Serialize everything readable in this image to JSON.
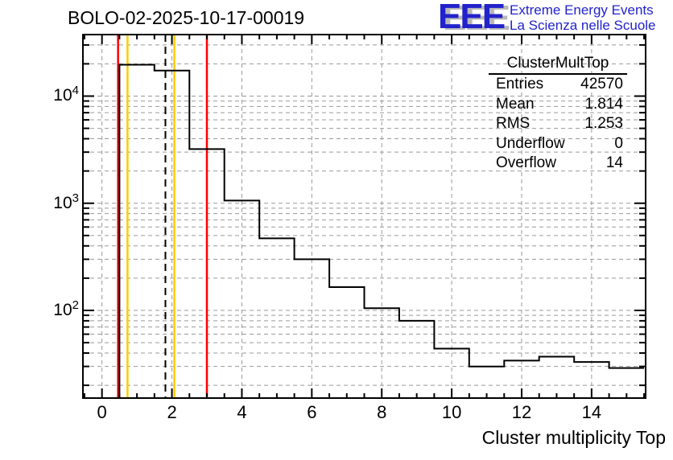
{
  "header": {
    "title": "BOLO-02-2025-10-17-00019",
    "logo": {
      "acronym": "EEE",
      "line1": "Extreme Energy Events",
      "line2": "La Scienza nelle Scuole",
      "blue": "#2222cc",
      "shadow": "#b9b9b9"
    }
  },
  "stats": {
    "title": "ClusterMultTop",
    "rows": [
      {
        "label": "Entries",
        "value": "42570"
      },
      {
        "label": "Mean",
        "value": "1.814"
      },
      {
        "label": "RMS",
        "value": "1.253"
      },
      {
        "label": "Underflow",
        "value": "0"
      },
      {
        "label": "Overflow",
        "value": "14"
      }
    ]
  },
  "chart_data": {
    "type": "bar",
    "style": "step-outline-histogram",
    "title": "BOLO-02-2025-10-17-00019",
    "xlabel": "Cluster multiplicity Top",
    "ylabel": "",
    "y_scale": "log",
    "grid": true,
    "x_range": [
      -0.545,
      15.545
    ],
    "y_range": [
      15.2,
      37500
    ],
    "bin_width": 1,
    "bin_centers": [
      0,
      1,
      2,
      3,
      4,
      5,
      6,
      7,
      8,
      9,
      10,
      11,
      12,
      13,
      14,
      15
    ],
    "counts": [
      0,
      19600,
      17300,
      3200,
      1060,
      470,
      300,
      165,
      105,
      80,
      44,
      30,
      34,
      37,
      33,
      29
    ],
    "x_major_ticks": [
      0,
      2,
      4,
      6,
      8,
      10,
      12,
      14
    ],
    "x_minor_step": 0.5,
    "y_major_ticks": [
      100,
      1000,
      10000
    ],
    "marker_lines": [
      {
        "x": 0.46,
        "color": "#ff0000",
        "style": "solid"
      },
      {
        "x": 0.73,
        "color": "#ffcc00",
        "style": "solid"
      },
      {
        "x": 1.814,
        "color": "#000000",
        "style": "dashed"
      },
      {
        "x": 2.07,
        "color": "#ffcc00",
        "style": "solid"
      },
      {
        "x": 3.0,
        "color": "#ff0000",
        "style": "solid"
      }
    ],
    "colors": {
      "histogram": "#000000",
      "frame": "#000000",
      "grid": "#999999"
    }
  }
}
